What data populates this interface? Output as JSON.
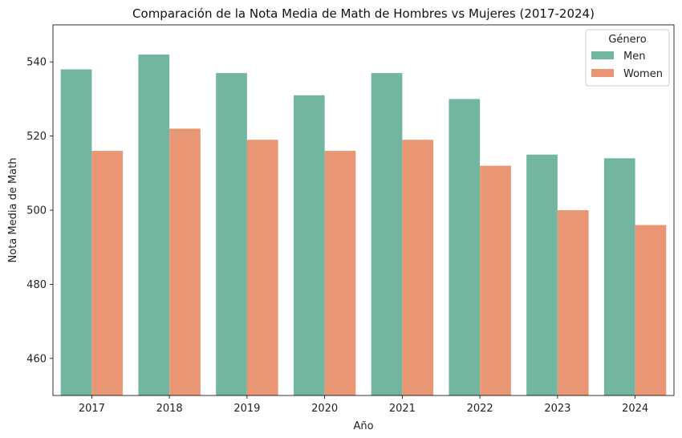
{
  "chart_data": {
    "type": "bar",
    "title": "Comparación de la Nota Media de Math de Hombres vs Mujeres (2017-2024)",
    "xlabel": "Año",
    "ylabel": "Nota Media de Math",
    "categories": [
      "2017",
      "2018",
      "2019",
      "2020",
      "2021",
      "2022",
      "2023",
      "2024"
    ],
    "series": [
      {
        "name": "Men",
        "color": "#72b6a1",
        "values": [
          538,
          542,
          537,
          531,
          537,
          530,
          515,
          514
        ]
      },
      {
        "name": "Women",
        "color": "#e99675",
        "values": [
          516,
          522,
          519,
          516,
          519,
          512,
          500,
          496
        ]
      }
    ],
    "ylim": [
      450,
      550
    ],
    "yticks": [
      460,
      480,
      500,
      520,
      540
    ],
    "legend": {
      "title": "Género",
      "position": "top-right"
    },
    "grid": false
  }
}
